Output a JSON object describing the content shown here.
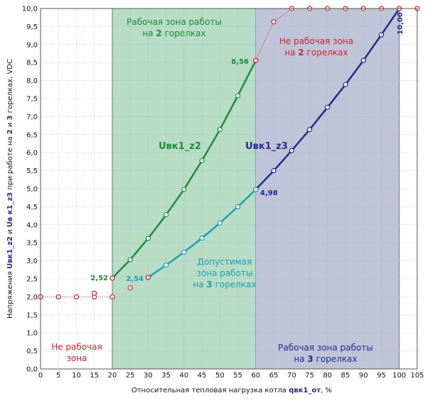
{
  "chart_data": {
    "type": "line",
    "xlabel_prefix": "Относительная тепловая нагрузка котла ",
    "xlabel_var": "qвк1_от",
    "xlabel_suffix": ", %",
    "ylabel_parts": [
      "Напряжения ",
      "Uвк1_z2",
      " и ",
      "Uв к1_z3",
      " при работе на ",
      "2",
      " и ",
      "3",
      " горелках,  VDC"
    ],
    "xlim": [
      0,
      105
    ],
    "ylim": [
      0,
      10
    ],
    "x_ticks": [
      "0",
      "5",
      "10",
      "15",
      "20",
      "25",
      "30",
      "35",
      "40",
      "45",
      "50",
      "55",
      "60",
      "65",
      "70",
      "75",
      "80",
      "85",
      "90",
      "95",
      "100",
      "105"
    ],
    "y_ticks": [
      "0,0",
      "0,5",
      "1,0",
      "1,5",
      "2,0",
      "2,5",
      "3,0",
      "3,5",
      "4,0",
      "4,5",
      "5,0",
      "5,5",
      "6,0",
      "6,5",
      "7,0",
      "7,5",
      "8,0",
      "8,5",
      "9,0",
      "9,5",
      "10,0"
    ],
    "colors": {
      "z2": "#1e8c3a",
      "z3": "#28288c",
      "allowed": "#1fa0b4",
      "red": "#d42030",
      "green_zone": "#b8dcc6",
      "blue_zone": "#c0c4d8",
      "grid": "#7fbfbf"
    },
    "zones": [
      {
        "from": 20,
        "to": 60,
        "type": "green"
      },
      {
        "from": 60,
        "to": 100,
        "type": "blue"
      }
    ],
    "series": [
      {
        "name": "Uвк1_z2",
        "color_key": "z2",
        "x": [
          20,
          25,
          30,
          35,
          40,
          45,
          50,
          55,
          60
        ],
        "y": [
          2.52,
          3.03,
          3.62,
          4.28,
          4.98,
          5.78,
          6.64,
          7.58,
          8.56
        ]
      },
      {
        "name": "Uвк1_z3",
        "color_key": "z3",
        "x": [
          60,
          65,
          70,
          75,
          80,
          85,
          90,
          95,
          100
        ],
        "y": [
          4.98,
          5.5,
          6.06,
          6.64,
          7.26,
          7.89,
          8.56,
          9.27,
          10.0
        ]
      },
      {
        "name": "allowed",
        "color_key": "allowed",
        "x": [
          30,
          35,
          40,
          45,
          50,
          55,
          60
        ],
        "y": [
          2.54,
          2.88,
          3.24,
          3.63,
          4.05,
          4.5,
          4.98
        ]
      },
      {
        "name": "red_left",
        "color_key": "red",
        "x": [
          0,
          5,
          10,
          15,
          20
        ],
        "y": [
          2.0,
          2.0,
          2.0,
          2.0,
          2.0
        ]
      },
      {
        "name": "red_right",
        "color_key": "red",
        "x": [
          60,
          65,
          70,
          75,
          80,
          85,
          90,
          95,
          100,
          105
        ],
        "y": [
          8.56,
          9.63,
          10.0,
          10.0,
          10.0,
          10.0,
          10.0,
          10.0,
          10.0,
          10.0
        ]
      }
    ],
    "extra_markers": [
      {
        "x": 15,
        "y": 2.1
      },
      {
        "x": 25,
        "y": 2.25
      },
      {
        "x": 20,
        "y": 2.52
      },
      {
        "x": 30,
        "y": 2.54
      }
    ],
    "annotations": {
      "green_zone": [
        "Рабочая зона работы",
        "на ",
        "2",
        " горелках"
      ],
      "not_working_2": [
        "Не рабочая зона",
        "на ",
        "2",
        " горелках"
      ],
      "allowed_zone": [
        "Допустимая",
        "зона работы",
        "на ",
        "3",
        " горелках"
      ],
      "blue_zone": [
        "Рабочая зона работы",
        "на ",
        "3",
        " горелках"
      ],
      "not_working_left": [
        "Не рабочая",
        "зона"
      ],
      "label_z2": "Uвк1_z2",
      "label_z3": "Uвк1_z3",
      "v_856": "8,56",
      "v_252": "2,52",
      "v_254": "2,54",
      "v_498": "4,98",
      "v_1000": "10,00"
    }
  }
}
